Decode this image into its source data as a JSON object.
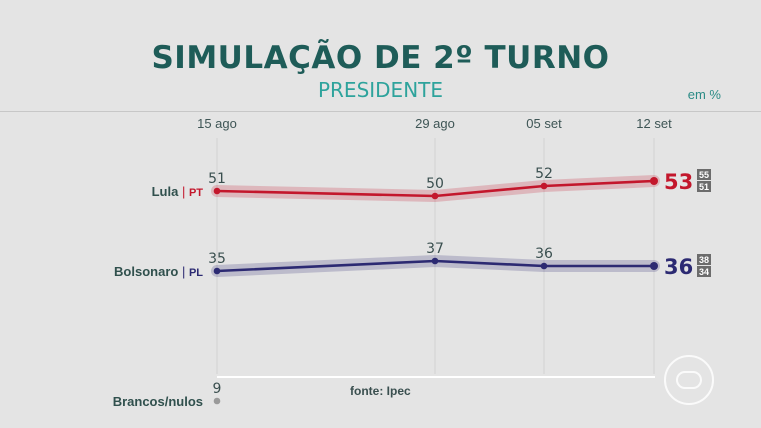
{
  "header": {
    "title": "SIMULAÇÃO DE 2º TURNO",
    "subtitle": "PRESIDENTE",
    "unit": "em %"
  },
  "footer": {
    "source": "fonte: Ipec"
  },
  "colors": {
    "lula": "#c3172c",
    "bolsonaro": "#2c2a72",
    "brancos": "#9a9a9a",
    "label": "#30504d",
    "title": "#1e5c58"
  },
  "chart_data": {
    "type": "line",
    "title": "SIMULAÇÃO DE 2º TURNO",
    "subtitle": "PRESIDENTE",
    "unit": "em %",
    "x": [
      "15 ago",
      "29 ago",
      "05 set",
      "12 set"
    ],
    "series": [
      {
        "key": "lula",
        "name": "Lula",
        "party": "PT",
        "values": [
          51,
          50,
          52,
          53
        ],
        "range": {
          "upper": 55,
          "lower": 51
        }
      },
      {
        "key": "bolsonaro",
        "name": "Bolsonaro",
        "party": "PL",
        "values": [
          35,
          37,
          36,
          36
        ],
        "range": {
          "upper": 38,
          "lower": 34
        }
      },
      {
        "key": "brancos",
        "name": "Brancos/nulos",
        "party": "",
        "values": [
          9,
          null,
          null,
          null
        ]
      }
    ],
    "grid": true,
    "legend": "left"
  }
}
